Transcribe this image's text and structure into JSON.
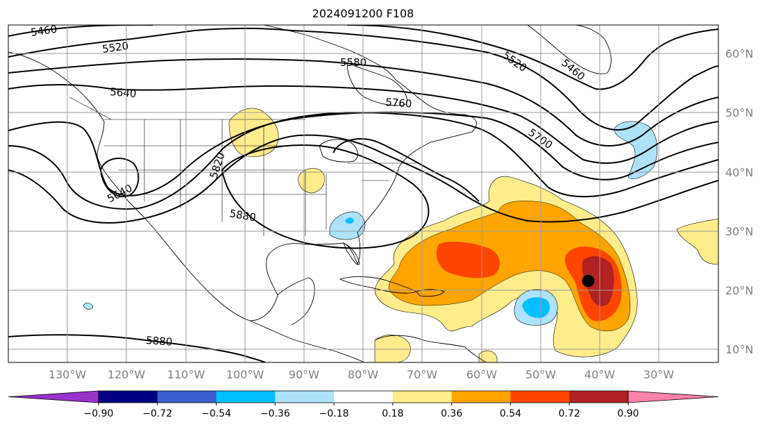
{
  "title": "2024091200 F108",
  "map": {
    "lon_range": [
      -145,
      -25
    ],
    "lat_range": [
      7,
      65
    ],
    "lat_labels": [
      "10°N",
      "20°N",
      "30°N",
      "40°N",
      "50°N",
      "60°N"
    ],
    "lon_labels": [
      "130°W",
      "120°W",
      "110°W",
      "100°W",
      "90°W",
      "80°W",
      "70°W",
      "60°W",
      "50°W",
      "40°W",
      "30°W"
    ],
    "contour_labels": [
      "5460",
      "5520",
      "5580",
      "5640",
      "5760",
      "5520",
      "5460",
      "5700",
      "5820",
      "5640",
      "5880",
      "5880"
    ],
    "marker": {
      "lon": -47,
      "lat": 21,
      "color": "#000000"
    }
  },
  "colorbar": {
    "ticks": [
      "−0.90",
      "−0.72",
      "−0.54",
      "−0.36",
      "−0.18",
      "0.18",
      "0.36",
      "0.54",
      "0.72",
      "0.90"
    ],
    "colors": [
      "#9933cc",
      "#000080",
      "#3a5fcd",
      "#00bfff",
      "#aee2fb",
      "#ffffff",
      "#ffec8b",
      "#ffa500",
      "#ff4500",
      "#b22222",
      "#ff82ab"
    ]
  }
}
